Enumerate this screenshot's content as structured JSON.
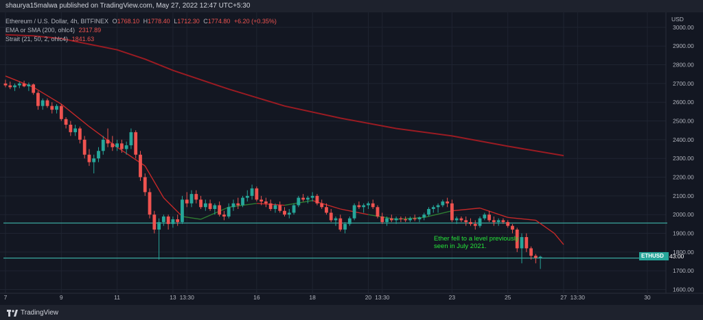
{
  "header": {
    "publisher": "shaurya15malwa published on TradingView.com, May 27, 2022 12:47 UTC+5:30"
  },
  "legend": {
    "symbol": "Ethereum / U.S. Dollar, 4h, BITFINEX",
    "o_label": "O",
    "o": "1768.10",
    "h_label": "H",
    "h": "1778.40",
    "l_label": "L",
    "l": "1712.30",
    "c_label": "C",
    "c": "1774.80",
    "change": "+6.20 (+0.35%)",
    "ma_label": "EMA or SMA (200, ohlc4)",
    "ma_value": "2317.89",
    "strait_label": "Strait (21, 50, 2, ohlc4)",
    "strait_value": "1841.63"
  },
  "annotation": {
    "line1": "Ether fell to a level previously",
    "line2": "seen in July 2021."
  },
  "price_tag": {
    "symbol": "ETHUSD",
    "time": "43:00"
  },
  "footer": {
    "brand": "TradingView"
  },
  "colors": {
    "background": "#131722",
    "up": "#26a69a",
    "down": "#ef5350",
    "ma200": "#9b1b22",
    "strait_bear": "#c62828",
    "strait_bull": "#2e7d32",
    "support": "#3aa99f",
    "annotation": "#26e63a"
  },
  "chart_data": {
    "type": "candlestick",
    "symbol": "ETHUSD",
    "currency_label": "USD",
    "ylim": [
      1580,
      3080
    ],
    "y_ticks": [
      1600,
      1700,
      1800,
      1900,
      2000,
      2100,
      2200,
      2300,
      2400,
      2500,
      2600,
      2700,
      2800,
      2900,
      3000
    ],
    "y_tick_labels": [
      "1600.00",
      "1700.00",
      "1800.00",
      "1900.00",
      "2000.00",
      "2100.00",
      "2200.00",
      "2300.00",
      "2400.00",
      "2500.00",
      "2600.00",
      "2700.00",
      "2800.00",
      "2900.00",
      "3000.00"
    ],
    "x_ticks": [
      {
        "t": 0,
        "label": "7"
      },
      {
        "t": 12,
        "label": "9"
      },
      {
        "t": 24,
        "label": "11"
      },
      {
        "t": 36,
        "label": "13"
      },
      {
        "t": 39,
        "label": "13:30"
      },
      {
        "t": 54,
        "label": "16"
      },
      {
        "t": 66,
        "label": "18"
      },
      {
        "t": 78,
        "label": "20"
      },
      {
        "t": 81,
        "label": "13:30"
      },
      {
        "t": 96,
        "label": "23"
      },
      {
        "t": 108,
        "label": "25"
      },
      {
        "t": 120,
        "label": "27"
      },
      {
        "t": 123,
        "label": "13:30"
      },
      {
        "t": 138,
        "label": "30"
      }
    ],
    "x_range": [
      0,
      144
    ],
    "candles": [
      [
        2700,
        2720,
        2680,
        2690
      ],
      [
        2690,
        2710,
        2670,
        2680
      ],
      [
        2680,
        2700,
        2660,
        2690
      ],
      [
        2690,
        2710,
        2675,
        2700
      ],
      [
        2700,
        2715,
        2680,
        2685
      ],
      [
        2685,
        2705,
        2660,
        2695
      ],
      [
        2695,
        2700,
        2640,
        2650
      ],
      [
        2650,
        2660,
        2560,
        2580
      ],
      [
        2580,
        2620,
        2560,
        2610
      ],
      [
        2610,
        2620,
        2570,
        2580
      ],
      [
        2580,
        2600,
        2540,
        2560
      ],
      [
        2560,
        2590,
        2540,
        2580
      ],
      [
        2580,
        2590,
        2500,
        2510
      ],
      [
        2510,
        2520,
        2460,
        2480
      ],
      [
        2480,
        2500,
        2420,
        2440
      ],
      [
        2440,
        2480,
        2420,
        2460
      ],
      [
        2460,
        2470,
        2380,
        2400
      ],
      [
        2400,
        2420,
        2300,
        2320
      ],
      [
        2320,
        2350,
        2260,
        2280
      ],
      [
        2280,
        2320,
        2220,
        2300
      ],
      [
        2300,
        2360,
        2280,
        2340
      ],
      [
        2340,
        2420,
        2320,
        2400
      ],
      [
        2400,
        2460,
        2360,
        2380
      ],
      [
        2380,
        2420,
        2340,
        2360
      ],
      [
        2360,
        2400,
        2340,
        2380
      ],
      [
        2380,
        2400,
        2330,
        2350
      ],
      [
        2350,
        2390,
        2320,
        2370
      ],
      [
        2370,
        2460,
        2350,
        2440
      ],
      [
        2440,
        2450,
        2300,
        2320
      ],
      [
        2320,
        2340,
        2180,
        2200
      ],
      [
        2200,
        2220,
        2100,
        2120
      ],
      [
        2120,
        2140,
        1980,
        2000
      ],
      [
        2000,
        2020,
        1900,
        1920
      ],
      [
        1920,
        1980,
        1760,
        1960
      ],
      [
        1960,
        2000,
        1940,
        1990
      ],
      [
        1990,
        2000,
        1920,
        1950
      ],
      [
        1950,
        1990,
        1930,
        1975
      ],
      [
        1975,
        2000,
        1940,
        1960
      ],
      [
        1960,
        2100,
        1950,
        2080
      ],
      [
        2080,
        2120,
        2040,
        2060
      ],
      [
        2060,
        2130,
        2040,
        2110
      ],
      [
        2110,
        2130,
        2060,
        2080
      ],
      [
        2080,
        2100,
        2030,
        2040
      ],
      [
        2040,
        2080,
        2020,
        2060
      ],
      [
        2060,
        2080,
        2020,
        2030
      ],
      [
        2030,
        2060,
        2000,
        2050
      ],
      [
        2050,
        2070,
        1990,
        2000
      ],
      [
        2000,
        2020,
        1970,
        1990
      ],
      [
        1990,
        2060,
        1980,
        2040
      ],
      [
        2040,
        2080,
        2020,
        2060
      ],
      [
        2060,
        2090,
        2030,
        2050
      ],
      [
        2050,
        2100,
        2040,
        2090
      ],
      [
        2090,
        2130,
        2070,
        2100
      ],
      [
        2100,
        2160,
        2080,
        2140
      ],
      [
        2140,
        2150,
        2070,
        2080
      ],
      [
        2080,
        2100,
        2050,
        2070
      ],
      [
        2070,
        2090,
        2040,
        2060
      ],
      [
        2060,
        2080,
        2020,
        2030
      ],
      [
        2030,
        2060,
        2010,
        2050
      ],
      [
        2050,
        2070,
        2010,
        2020
      ],
      [
        2020,
        2040,
        1990,
        2000
      ],
      [
        2000,
        2030,
        1980,
        2010
      ],
      [
        2010,
        2060,
        2000,
        2050
      ],
      [
        2050,
        2100,
        2040,
        2090
      ],
      [
        2090,
        2110,
        2070,
        2080
      ],
      [
        2080,
        2100,
        2060,
        2090
      ],
      [
        2090,
        2120,
        2070,
        2100
      ],
      [
        2100,
        2110,
        2050,
        2060
      ],
      [
        2060,
        2080,
        2030,
        2040
      ],
      [
        2040,
        2060,
        2000,
        2010
      ],
      [
        2010,
        2030,
        1960,
        1970
      ],
      [
        1970,
        1990,
        1940,
        1980
      ],
      [
        1980,
        2000,
        1910,
        1920
      ],
      [
        1920,
        1960,
        1900,
        1950
      ],
      [
        1950,
        1990,
        1940,
        1980
      ],
      [
        1980,
        2060,
        1970,
        2050
      ],
      [
        2050,
        2070,
        2030,
        2040
      ],
      [
        2040,
        2060,
        2010,
        2050
      ],
      [
        2050,
        2070,
        2030,
        2060
      ],
      [
        2060,
        2080,
        2030,
        2040
      ],
      [
        2040,
        2050,
        1980,
        1990
      ],
      [
        1990,
        2010,
        1950,
        1960
      ],
      [
        1960,
        1990,
        1940,
        1980
      ],
      [
        1980,
        2000,
        1960,
        1970
      ],
      [
        1970,
        1990,
        1950,
        1980
      ],
      [
        1980,
        1990,
        1960,
        1975
      ],
      [
        1975,
        1990,
        1960,
        1970
      ],
      [
        1970,
        1990,
        1960,
        1980
      ],
      [
        1980,
        2000,
        1965,
        1975
      ],
      [
        1975,
        1990,
        1960,
        1985
      ],
      [
        1985,
        2010,
        1970,
        2000
      ],
      [
        2000,
        2040,
        1990,
        2030
      ],
      [
        2030,
        2050,
        2010,
        2040
      ],
      [
        2040,
        2060,
        2010,
        2050
      ],
      [
        2050,
        2080,
        2040,
        2070
      ],
      [
        2070,
        2090,
        2040,
        2060
      ],
      [
        2060,
        2080,
        1960,
        1970
      ],
      [
        1970,
        1990,
        1950,
        1980
      ],
      [
        1980,
        1990,
        1960,
        1970
      ],
      [
        1970,
        1990,
        1940,
        1960
      ],
      [
        1960,
        1980,
        1940,
        1950
      ],
      [
        1950,
        1970,
        1920,
        1940
      ],
      [
        1940,
        1990,
        1930,
        1980
      ],
      [
        1980,
        2010,
        1970,
        2000
      ],
      [
        2000,
        2020,
        1960,
        1970
      ],
      [
        1970,
        1990,
        1940,
        1960
      ],
      [
        1960,
        1980,
        1940,
        1970
      ],
      [
        1970,
        1980,
        1950,
        1960
      ],
      [
        1960,
        1970,
        1930,
        1940
      ],
      [
        1940,
        1950,
        1900,
        1920
      ],
      [
        1920,
        1930,
        1800,
        1820
      ],
      [
        1820,
        1900,
        1740,
        1880
      ],
      [
        1880,
        1900,
        1800,
        1820
      ],
      [
        1820,
        1830,
        1760,
        1780
      ],
      [
        1780,
        1790,
        1740,
        1770
      ],
      [
        1770,
        1780,
        1710,
        1775
      ]
    ],
    "series": [
      {
        "name": "EMA or SMA (200, ohlc4)",
        "t": [
          0,
          6,
          12,
          18,
          24,
          30,
          36,
          48,
          60,
          72,
          84,
          96,
          108,
          120
        ],
        "values": [
          2960,
          2955,
          2940,
          2910,
          2880,
          2830,
          2770,
          2670,
          2580,
          2515,
          2460,
          2420,
          2365,
          2315
        ]
      },
      {
        "name": "Strait (21, 50, 2, ohlc4)",
        "t": [
          0,
          6,
          12,
          18,
          24,
          30,
          34,
          38,
          42,
          48,
          54,
          60,
          66,
          72,
          78,
          84,
          90,
          96,
          102,
          108,
          114,
          118,
          120
        ],
        "values": [
          2740,
          2680,
          2590,
          2470,
          2360,
          2260,
          2090,
          1990,
          1975,
          2040,
          2060,
          2050,
          2075,
          2030,
          2000,
          1975,
          1985,
          2020,
          2035,
          1985,
          1970,
          1900,
          1840
        ],
        "trend": [
          "down",
          "down",
          "down",
          "down",
          "down",
          "down",
          "down",
          "down",
          "up",
          "up",
          "up",
          "down",
          "up",
          "down",
          "down",
          "up",
          "up",
          "up",
          "down",
          "down",
          "down",
          "down",
          "down"
        ]
      }
    ],
    "support_lines": [
      1955,
      1768
    ]
  }
}
